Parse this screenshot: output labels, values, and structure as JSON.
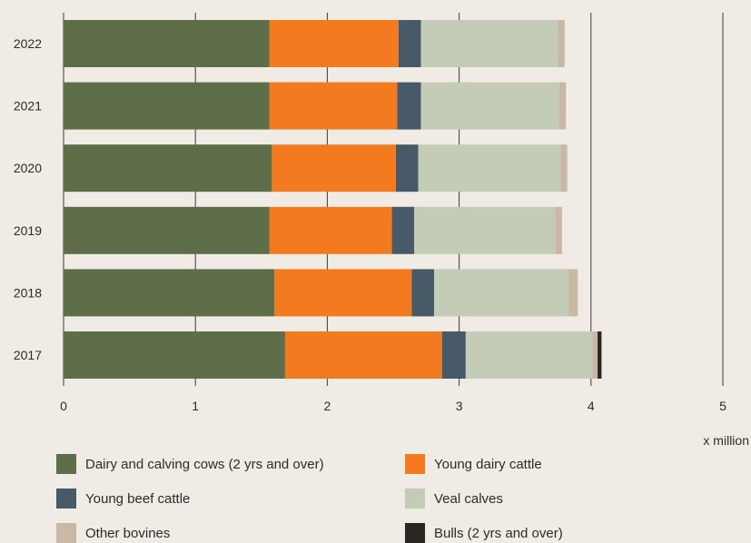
{
  "chart_data": {
    "type": "bar",
    "orientation": "horizontal",
    "stacked": true,
    "categories": [
      "2022",
      "2021",
      "2020",
      "2019",
      "2018",
      "2017"
    ],
    "series": [
      {
        "name": "Dairy and calving cows (2 yrs and over)",
        "color": "#5e6e48",
        "values": [
          1.56,
          1.56,
          1.58,
          1.56,
          1.6,
          1.68
        ]
      },
      {
        "name": "Young dairy cattle",
        "color": "#f47a20",
        "values": [
          0.98,
          0.97,
          0.94,
          0.93,
          1.04,
          1.19
        ]
      },
      {
        "name": "Young beef cattle",
        "color": "#485a67",
        "values": [
          0.17,
          0.18,
          0.17,
          0.17,
          0.17,
          0.18
        ]
      },
      {
        "name": "Veal calves",
        "color": "#c4cbb6",
        "values": [
          1.04,
          1.05,
          1.08,
          1.07,
          1.02,
          0.96
        ]
      },
      {
        "name": "Other bovines",
        "color": "#c9b8a6",
        "values": [
          0.05,
          0.05,
          0.05,
          0.05,
          0.07,
          0.04
        ]
      },
      {
        "name": "Bulls (2 yrs and over)",
        "color": "#2a2722",
        "values": [
          0.0,
          0.0,
          0.0,
          0.0,
          0.0,
          0.03
        ]
      }
    ],
    "xlim": [
      0,
      5
    ],
    "xticks": [
      "0",
      "1",
      "2",
      "3",
      "4",
      "5"
    ],
    "x_unit": "x million",
    "grid": "vertical",
    "legend_position": "bottom"
  }
}
